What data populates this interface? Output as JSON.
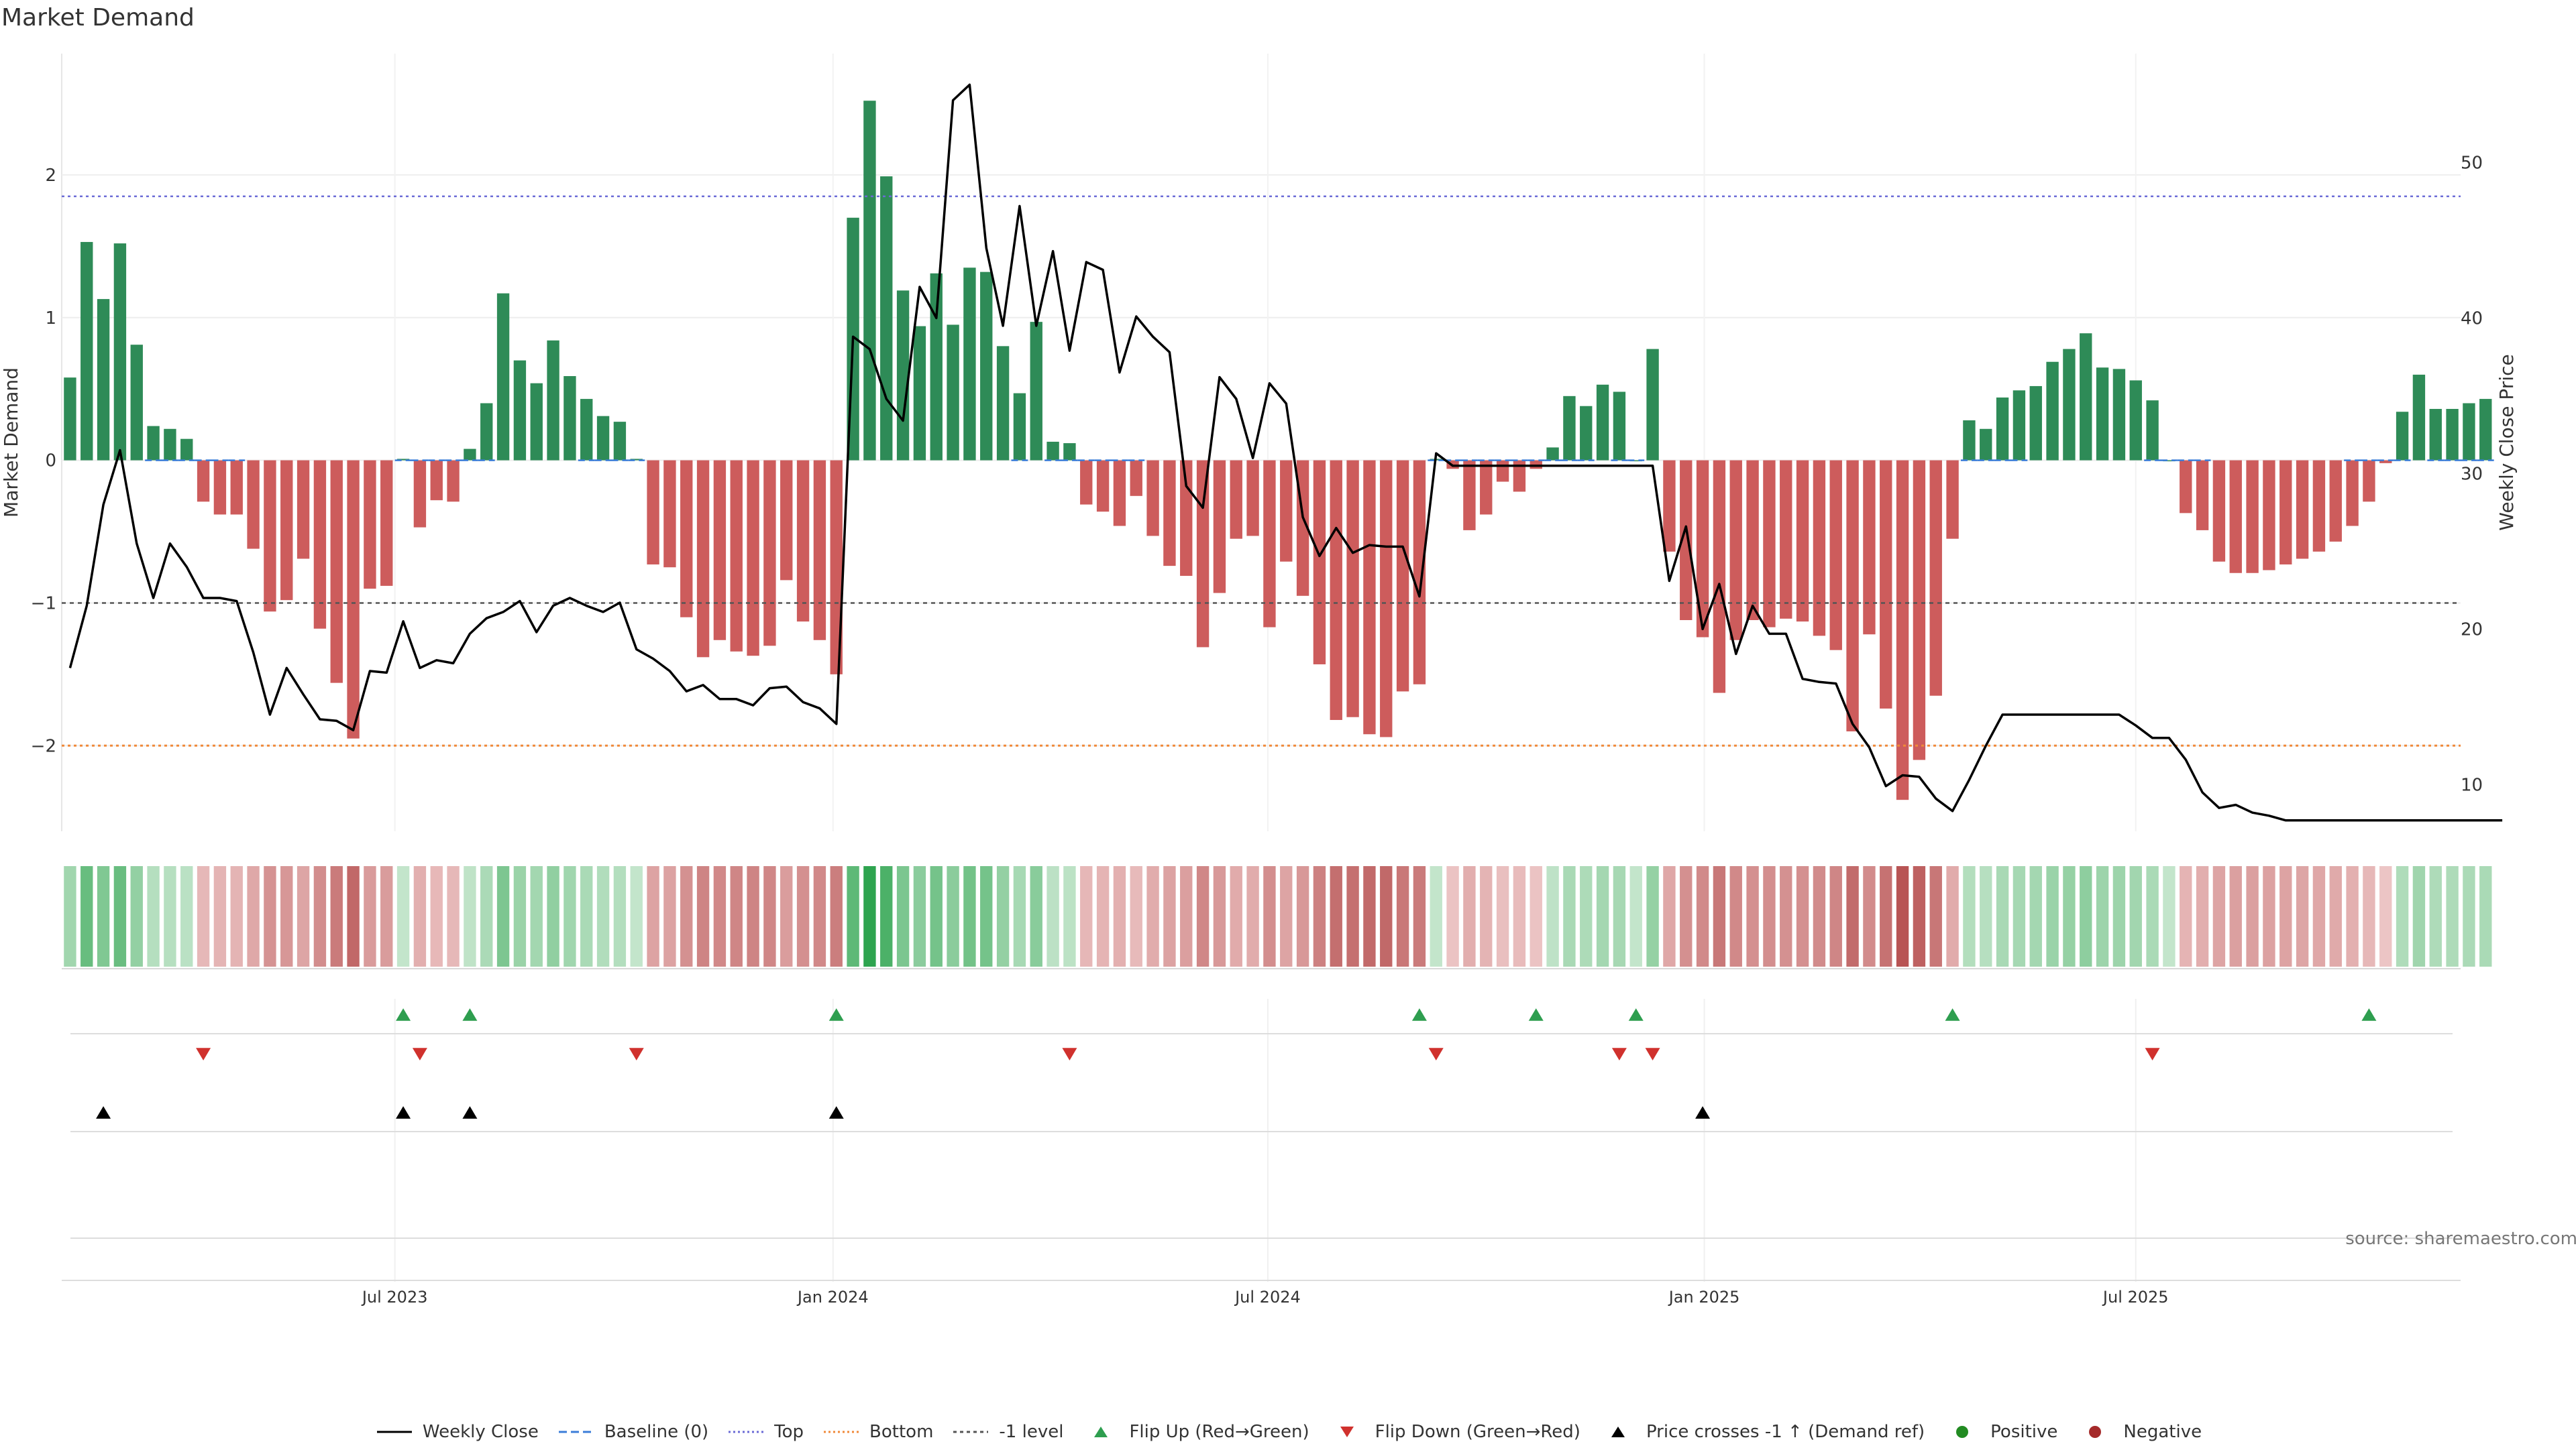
{
  "title": "Market Demand",
  "source": "source: sharemaestro.com",
  "colors": {
    "positive": "#2e8b57",
    "negative": "#cd5c5c",
    "price": "#000000",
    "top": "#6b6bd6",
    "bottom": "#f08a3a",
    "minus1": "#555555",
    "baseline": "#3b7dd8",
    "flip_up": "#2e9e4f",
    "flip_down": "#d0312d",
    "cross": "#000000",
    "pos_dot": "#228b22",
    "neg_dot": "#a52a2a"
  },
  "chart_data": {
    "type": "bar",
    "title": "Market Demand",
    "xlabel": "",
    "ylabel": "Market Demand",
    "y2label": "Weekly Close Price",
    "ylim": [
      -2.6,
      2.85
    ],
    "y2lim": [
      7,
      57
    ],
    "yticks": [
      -2,
      -1,
      0,
      1,
      2
    ],
    "yticklabels": [
      "−2",
      "−1",
      "0",
      "1",
      "2"
    ],
    "y2ticks": [
      10,
      20,
      30,
      40,
      50
    ],
    "xlim": [
      0,
      144
    ],
    "xticks": [
      20,
      46.3,
      72.4,
      98.6,
      124.5
    ],
    "xticklabels": [
      "Jul 2023",
      "Jan 2024",
      "Jul 2024",
      "Jan 2025",
      "Jul 2025"
    ],
    "reference_lines": {
      "top": 1.85,
      "bottom": -2.0,
      "minus1": -1.0,
      "baseline": 0
    },
    "demand": [
      0.58,
      1.53,
      1.13,
      1.52,
      0.81,
      0.24,
      0.22,
      0.15,
      -0.29,
      -0.38,
      -0.38,
      -0.62,
      -1.06,
      -0.98,
      -0.69,
      -1.18,
      -1.56,
      -1.95,
      -0.9,
      -0.88,
      0.01,
      -0.47,
      -0.28,
      -0.29,
      0.08,
      0.4,
      1.17,
      0.7,
      0.54,
      0.84,
      0.59,
      0.43,
      0.31,
      0.27,
      0.01,
      -0.73,
      -0.75,
      -1.1,
      -1.38,
      -1.26,
      -1.34,
      -1.37,
      -1.3,
      -0.84,
      -1.13,
      -1.26,
      -1.5,
      1.7,
      2.52,
      1.99,
      1.19,
      0.94,
      1.31,
      0.95,
      1.35,
      1.32,
      0.8,
      0.47,
      0.97,
      0.13,
      0.12,
      -0.31,
      -0.36,
      -0.46,
      -0.25,
      -0.53,
      -0.74,
      -0.81,
      -1.31,
      -0.93,
      -0.55,
      -0.53,
      -1.17,
      -0.71,
      -0.95,
      -1.43,
      -1.82,
      -1.8,
      -1.92,
      -1.94,
      -1.62,
      -1.57,
      0.01,
      -0.06,
      -0.49,
      -0.38,
      -0.15,
      -0.22,
      -0.06,
      0.09,
      0.45,
      0.38,
      0.53,
      0.48,
      0.0,
      0.78,
      -0.64,
      -1.12,
      -1.24,
      -1.63,
      -1.26,
      -1.12,
      -1.17,
      -1.11,
      -1.13,
      -1.23,
      -1.33,
      -1.9,
      -1.22,
      -1.74,
      -2.38,
      -2.1,
      -1.65,
      -0.55,
      0.28,
      0.22,
      0.44,
      0.49,
      0.52,
      0.69,
      0.78,
      0.89,
      0.65,
      0.64,
      0.56,
      0.42,
      0.0,
      -0.37,
      -0.49,
      -0.71,
      -0.79,
      -0.79,
      -0.77,
      -0.73,
      -0.69,
      -0.64,
      -0.57,
      -0.46,
      -0.29,
      -0.02,
      0.34,
      0.6,
      0.36,
      0.36,
      0.4,
      0.43
    ],
    "weekly_close": [
      17.5,
      21.5,
      28,
      31.5,
      25.5,
      22,
      25.5,
      24,
      22,
      22,
      21.8,
      18.5,
      14.5,
      17.5,
      15.8,
      14.2,
      14.1,
      13.5,
      17.3,
      17.2,
      20.5,
      17.5,
      18,
      17.8,
      19.7,
      20.7,
      21.1,
      21.8,
      19.8,
      21.5,
      22,
      21.5,
      21.1,
      21.7,
      18.7,
      18.1,
      17.3,
      16,
      16.4,
      15.5,
      15.5,
      15.1,
      16.2,
      16.3,
      15.3,
      14.9,
      13.9,
      38.8,
      38,
      34.8,
      33.4,
      42,
      40,
      54,
      55,
      44.5,
      39.5,
      47.2,
      39.5,
      44.3,
      37.9,
      43.6,
      43.1,
      36.5,
      40.1,
      38.8,
      37.8,
      29.2,
      27.8,
      36.2,
      34.8,
      31,
      35.8,
      34.5,
      27.2,
      24.7,
      26.5,
      24.9,
      25.4,
      25.3,
      25.3,
      22.1,
      31.3,
      30.5,
      30.5,
      30.5,
      30.5,
      30.5,
      30.5,
      30.5,
      30.5,
      30.5,
      30.5,
      30.5,
      30.5,
      30.5,
      23.1,
      26.6,
      20,
      22.9,
      18.4,
      21.5,
      19.7,
      19.7,
      16.8,
      16.6,
      16.5,
      13.9,
      12.4,
      9.9,
      10.6,
      10.5,
      9.1,
      8.3,
      10.3,
      12.5,
      14.5,
      14.5,
      14.5,
      14.5,
      14.5,
      14.5,
      14.5,
      14.5,
      13.8,
      13,
      13,
      11.6,
      9.5,
      8.5,
      8.7,
      8.2,
      8,
      7.7,
      7.7,
      7.7,
      7.7,
      7.7,
      7.7,
      7.7,
      7.7,
      7.7,
      7.7,
      7.7,
      7.7,
      7.7,
      7.7
    ],
    "flip_up_weeks": [
      20,
      24,
      46,
      81,
      88,
      94,
      113,
      138
    ],
    "flip_down_weeks": [
      8,
      21,
      34,
      60,
      82,
      93,
      95,
      125
    ],
    "price_cross_weeks": [
      2,
      20,
      24,
      46,
      98
    ],
    "legend": [
      {
        "key": "price",
        "label": "Weekly Close"
      },
      {
        "key": "baseline",
        "label": "Baseline (0)"
      },
      {
        "key": "top",
        "label": "Top"
      },
      {
        "key": "bottom",
        "label": "Bottom"
      },
      {
        "key": "minus1",
        "label": "-1 level"
      },
      {
        "key": "flip_up",
        "label": "Flip Up (Red→Green)"
      },
      {
        "key": "flip_down",
        "label": "Flip Down (Green→Red)"
      },
      {
        "key": "cross",
        "label": "Price crosses -1 ↑ (Demand ref)"
      },
      {
        "key": "pos_dot",
        "label": "Positive"
      },
      {
        "key": "neg_dot",
        "label": "Negative"
      }
    ]
  }
}
